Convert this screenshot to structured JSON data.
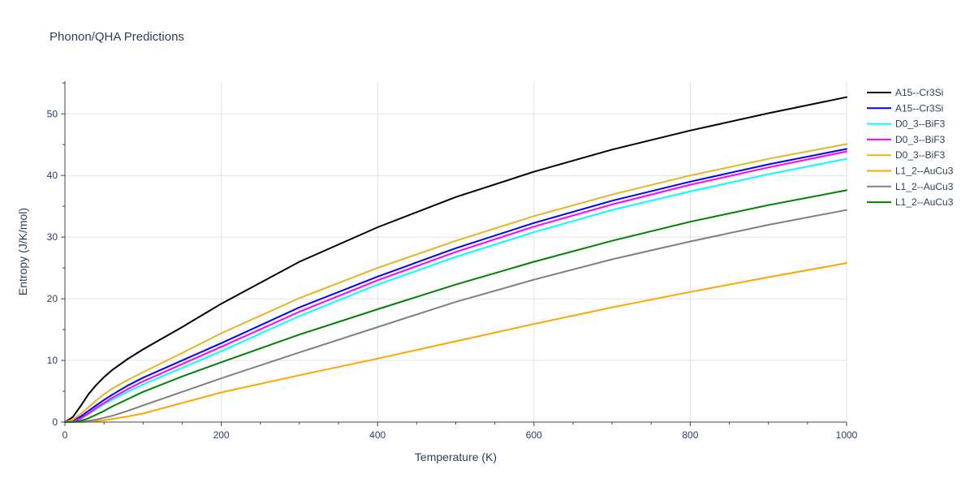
{
  "chart_data": {
    "type": "line",
    "title": "Phonon/QHA Predictions",
    "xlabel": "Temperature (K)",
    "ylabel": "Entropy (J/K/mol)",
    "xlim": [
      0,
      1000
    ],
    "ylim": [
      0,
      55.3
    ],
    "x_ticks": [
      0,
      200,
      400,
      600,
      800,
      1000
    ],
    "y_ticks": [
      0,
      10,
      20,
      30,
      40,
      50
    ],
    "grid": true,
    "legend_position": "right",
    "series": [
      {
        "name": "A15--Cr3Si",
        "color": "#000000",
        "x": [
          0,
          10,
          20,
          30,
          40,
          50,
          60,
          80,
          100,
          150,
          200,
          300,
          400,
          500,
          600,
          700,
          800,
          900,
          1000
        ],
        "y": [
          0,
          0.8,
          2.6,
          4.5,
          6.0,
          7.3,
          8.4,
          10.2,
          11.8,
          15.4,
          19.2,
          26.0,
          31.6,
          36.5,
          40.6,
          44.2,
          47.3,
          50.1,
          52.7
        ]
      },
      {
        "name": "A15--Cr3Si",
        "color": "#0000ff",
        "x": [
          0,
          10,
          20,
          30,
          40,
          50,
          60,
          80,
          100,
          150,
          200,
          300,
          400,
          500,
          600,
          700,
          800,
          900,
          1000
        ],
        "y": [
          0,
          0.2,
          0.9,
          1.8,
          2.7,
          3.6,
          4.4,
          5.9,
          7.2,
          10.0,
          12.8,
          18.6,
          23.6,
          28.2,
          32.3,
          35.9,
          39.0,
          41.8,
          44.3
        ]
      },
      {
        "name": "D0_3--BiF3",
        "color": "#00ffff",
        "x": [
          0,
          10,
          20,
          30,
          40,
          50,
          60,
          80,
          100,
          150,
          200,
          300,
          400,
          500,
          600,
          700,
          800,
          900,
          1000
        ],
        "y": [
          0,
          0.1,
          0.5,
          1.3,
          2.1,
          2.9,
          3.6,
          4.9,
          6.1,
          8.8,
          11.5,
          17.2,
          22.3,
          26.8,
          30.8,
          34.4,
          37.4,
          40.2,
          42.7
        ]
      },
      {
        "name": "D0_3--BiF3",
        "color": "#ff00ff",
        "x": [
          0,
          10,
          20,
          30,
          40,
          50,
          60,
          80,
          100,
          150,
          200,
          300,
          400,
          500,
          600,
          700,
          800,
          900,
          1000
        ],
        "y": [
          0,
          0.1,
          0.6,
          1.4,
          2.3,
          3.1,
          3.9,
          5.3,
          6.6,
          9.4,
          12.2,
          17.9,
          23.0,
          27.6,
          31.7,
          35.3,
          38.5,
          41.3,
          43.9
        ]
      },
      {
        "name": "D0_3--BiF3",
        "color": "#e6b422",
        "x": [
          0,
          10,
          20,
          30,
          40,
          50,
          60,
          80,
          100,
          150,
          200,
          300,
          400,
          500,
          600,
          700,
          800,
          900,
          1000
        ],
        "y": [
          0,
          0.4,
          1.3,
          2.4,
          3.5,
          4.5,
          5.4,
          6.8,
          8.1,
          11.2,
          14.4,
          20.1,
          25.0,
          29.4,
          33.4,
          36.9,
          40.0,
          42.7,
          45.1
        ]
      },
      {
        "name": "L1_2--AuCu3",
        "color": "#ffa500",
        "x": [
          0,
          10,
          20,
          30,
          40,
          50,
          60,
          80,
          100,
          150,
          200,
          300,
          400,
          500,
          600,
          700,
          800,
          900,
          1000
        ],
        "y": [
          0,
          0,
          0,
          0.05,
          0.15,
          0.3,
          0.5,
          0.9,
          1.4,
          3.1,
          4.8,
          7.6,
          10.3,
          13.1,
          15.9,
          18.6,
          21.1,
          23.5,
          25.8
        ]
      },
      {
        "name": "L1_2--AuCu3",
        "color": "#808080",
        "x": [
          0,
          10,
          20,
          30,
          40,
          50,
          60,
          80,
          100,
          150,
          200,
          300,
          400,
          500,
          600,
          700,
          800,
          900,
          1000
        ],
        "y": [
          0,
          0,
          0.05,
          0.2,
          0.4,
          0.7,
          1.0,
          1.8,
          2.7,
          4.9,
          7.1,
          11.3,
          15.4,
          19.5,
          23.1,
          26.4,
          29.3,
          32.0,
          34.4
        ]
      },
      {
        "name": "L1_2--AuCu3",
        "color": "#008000",
        "x": [
          0,
          10,
          20,
          30,
          40,
          50,
          60,
          80,
          100,
          150,
          200,
          300,
          400,
          500,
          600,
          700,
          800,
          900,
          1000
        ],
        "y": [
          0,
          0.05,
          0.2,
          0.6,
          1.2,
          1.8,
          2.5,
          3.7,
          4.9,
          7.4,
          9.7,
          14.2,
          18.3,
          22.3,
          26.0,
          29.4,
          32.5,
          35.2,
          37.6
        ]
      }
    ]
  }
}
